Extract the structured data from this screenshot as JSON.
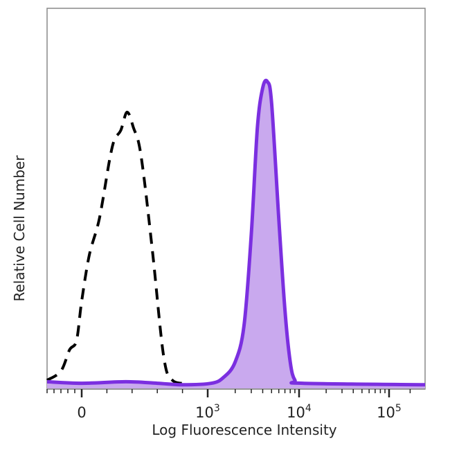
{
  "chart_data": {
    "type": "area",
    "title": "",
    "xlabel": "Log Fluorescence Intensity",
    "ylabel": "Relative Cell Number",
    "x_scale": "biexponential",
    "xlim": [
      -1000,
      200000
    ],
    "ylim": [
      0,
      1.1
    ],
    "x_ticks": [
      {
        "value": 0,
        "base": "0",
        "exp": ""
      },
      {
        "value": 1000,
        "base": "10",
        "exp": "3"
      },
      {
        "value": 10000,
        "base": "10",
        "exp": "4"
      },
      {
        "value": 100000,
        "base": "10",
        "exp": "5"
      }
    ],
    "grid": false,
    "legend": "none",
    "series": [
      {
        "style": "dashed",
        "color": "#000000",
        "fill": "none",
        "points": [
          [
            -1000,
            0.02
          ],
          [
            -600,
            0.05
          ],
          [
            -350,
            0.12
          ],
          [
            -150,
            0.15
          ],
          [
            0,
            0.28
          ],
          [
            60,
            0.43
          ],
          [
            140,
            0.55
          ],
          [
            220,
            0.74
          ],
          [
            260,
            0.81
          ],
          [
            310,
            0.84
          ],
          [
            360,
            0.9
          ],
          [
            410,
            0.85
          ],
          [
            470,
            0.76
          ],
          [
            560,
            0.45
          ],
          [
            650,
            0.1
          ],
          [
            720,
            0.02
          ],
          [
            850,
            0.01
          ]
        ]
      },
      {
        "style": "solid",
        "color": "#7b2fe0",
        "fill": "#c9a9ee",
        "points": [
          [
            -1000,
            0.015
          ],
          [
            0,
            0.01
          ],
          [
            350,
            0.015
          ],
          [
            600,
            0.01
          ],
          [
            800,
            0.005
          ],
          [
            1100,
            0.01
          ],
          [
            1500,
            0.03
          ],
          [
            2000,
            0.08
          ],
          [
            2500,
            0.2
          ],
          [
            3000,
            0.5
          ],
          [
            3500,
            0.85
          ],
          [
            4000,
            0.98
          ],
          [
            4500,
            1.0
          ],
          [
            5000,
            0.93
          ],
          [
            6000,
            0.55
          ],
          [
            7000,
            0.25
          ],
          [
            8000,
            0.08
          ],
          [
            9000,
            0.02
          ],
          [
            11000,
            0.01
          ],
          [
            200000,
            0.005
          ]
        ]
      }
    ]
  }
}
